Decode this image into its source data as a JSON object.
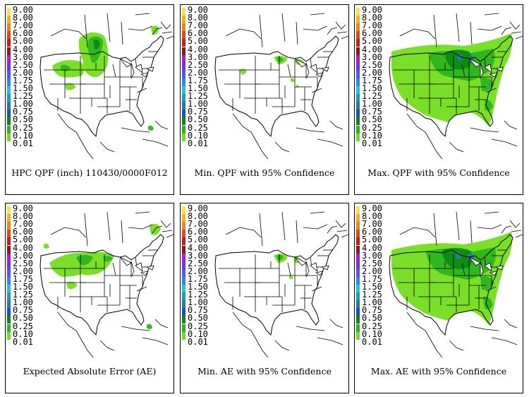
{
  "legend": {
    "values": [
      "9.00",
      "8.00",
      "7.00",
      "6.00",
      "5.00",
      "4.00",
      "3.00",
      "2.50",
      "2.00",
      "1.75",
      "1.50",
      "1.25",
      "1.00",
      "0.75",
      "0.50",
      "0.25",
      "0.10",
      "0.01"
    ],
    "colors": [
      "#f7e34f",
      "#f2b21f",
      "#e8871c",
      "#e04a17",
      "#c81c16",
      "#8a1a14",
      "#b01ac8",
      "#7a2ee0",
      "#5a50ff",
      "#2b8ae8",
      "#26c0e0",
      "#1aa0b0",
      "#2a7aa0",
      "#1a50c0",
      "#0a8a14",
      "#2cb41e",
      "#72dd1e",
      "#ffffff"
    ]
  },
  "panels": [
    {
      "id": "hpc-qpf",
      "caption": "HPC QPF (inch) 110430/0000F012"
    },
    {
      "id": "min-qpf",
      "caption": "Min. QPF with 95% Confidence"
    },
    {
      "id": "max-qpf",
      "caption": "Max. QPF with 95% Confidence"
    },
    {
      "id": "expected-ae",
      "caption": "Expected Absolute Error (AE)"
    },
    {
      "id": "min-ae",
      "caption": "Min. AE with 95% Confidence"
    },
    {
      "id": "max-ae",
      "caption": "Max. AE with 95% Confidence"
    }
  ],
  "colors": {
    "light_green": "#72dd1e",
    "mid_green": "#2cb41e",
    "dark_green": "#0a8a14",
    "blue": "#2a7aa0",
    "border": "#000000"
  }
}
